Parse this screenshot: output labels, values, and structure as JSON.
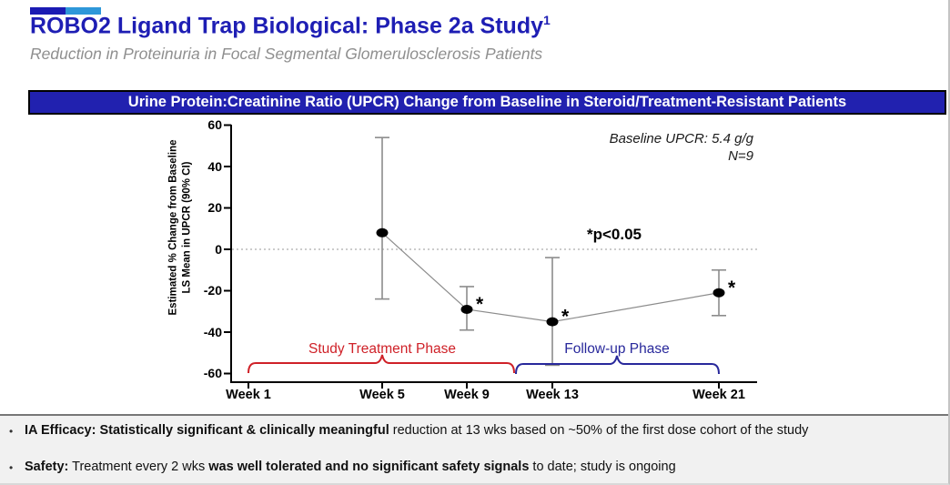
{
  "slide": {
    "title": "ROBO2 Ligand Trap Biological: Phase 2a Study",
    "title_superscript": "1",
    "subtitle": "Reduction in Proteinuria in Focal Segmental Glomerulosclerosis Patients",
    "banner": "Urine Protein:Creatinine Ratio (UPCR) Change from Baseline in Steroid/Treatment-Resistant Patients"
  },
  "colors": {
    "title_blue": "#1e1eb4",
    "accent_dark_blue": "#1b1bb3",
    "accent_light_blue": "#2e97d9",
    "banner_bg": "#2121af",
    "banner_text": "#ffffff",
    "axis_black": "#000000",
    "error_bar_gray": "#8c8c8c",
    "treatment_phase_red": "#cf2128",
    "followup_phase_blue": "#28289b"
  },
  "chart_data": {
    "type": "line",
    "title": "Urine Protein:Creatinine Ratio (UPCR) Change from Baseline in Steroid/Treatment-Resistant Patients",
    "ylabel_line1": "Estimated % Change from Baseline",
    "ylabel_line2": "LS Mean in UPCR (90% CI)",
    "ylim": [
      -60,
      60
    ],
    "yticks": [
      "60",
      "40",
      "20",
      "0",
      "-20",
      "-40",
      "-60"
    ],
    "ytick_values": [
      60,
      40,
      20,
      0,
      -20,
      -40,
      -60
    ],
    "x_tick_labels": [
      "Week 1",
      "Week 5",
      "Week 9",
      "Week 13",
      "Week 21"
    ],
    "zero_reference_line": true,
    "grid": false,
    "legend": "none",
    "significance_marker": "*",
    "series": [
      {
        "name": "UPCR LS Mean % change (90% CI)",
        "points": [
          {
            "x_label": "Week 5",
            "mean": 8,
            "ci_low": -24,
            "ci_high": 54,
            "significant": false
          },
          {
            "x_label": "Week 9",
            "mean": -29,
            "ci_low": -39,
            "ci_high": -18,
            "significant": true
          },
          {
            "x_label": "Week 13",
            "mean": -35,
            "ci_low": -56,
            "ci_high": -4,
            "significant": true
          },
          {
            "x_label": "Week 21",
            "mean": -21,
            "ci_low": -32,
            "ci_high": -10,
            "significant": true
          }
        ]
      }
    ],
    "annotations": {
      "baseline": "Baseline UPCR: 5.4 g/g",
      "n": "N=9",
      "significance": "*p<0.05"
    },
    "phases": [
      {
        "label": "Study Treatment Phase",
        "color": "#cf2128",
        "from_label": "Week 1",
        "to": "between Week 9 and Week 13"
      },
      {
        "label": "Follow-up Phase",
        "color": "#28289b",
        "from": "between Week 9 and Week 13",
        "to_label": "Week 21"
      }
    ]
  },
  "footer": {
    "bullet_glyph": "•",
    "bullets": [
      {
        "segments": [
          {
            "text": "IA Efficacy: Statistically significant & clinically meaningful",
            "bold": true
          },
          {
            "text": " reduction at 13 wks based on ~50% of the first dose cohort of the study",
            "bold": false
          }
        ]
      },
      {
        "segments": [
          {
            "text": "Safety:",
            "bold": true
          },
          {
            "text": " Treatment every 2 wks ",
            "bold": false
          },
          {
            "text": "was well tolerated and no significant safety signals",
            "bold": true
          },
          {
            "text": " to date; study is ongoing",
            "bold": false
          }
        ]
      }
    ]
  }
}
